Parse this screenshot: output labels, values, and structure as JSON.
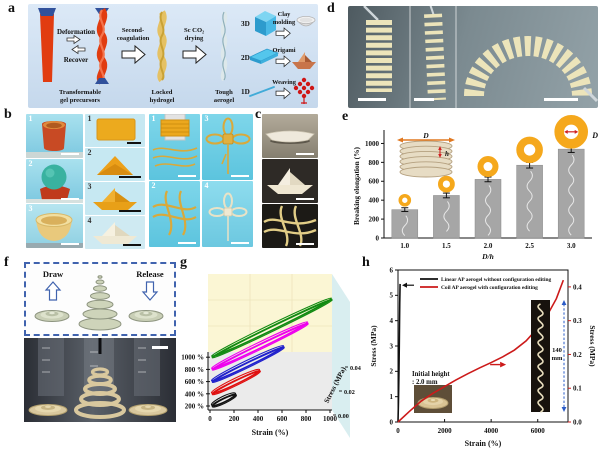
{
  "panels": {
    "a": {
      "label": "a",
      "deformation": "Deformation",
      "recover": "Recover",
      "precursors": [
        "Transformable",
        "gel precursors"
      ],
      "second_coagulation": [
        "Second-",
        "coagulation"
      ],
      "locked_hydrogel": [
        "Locked",
        "hydrogel"
      ],
      "sc_co2_drying": [
        "Sc CO₂",
        "drying"
      ],
      "tough_aerogel": [
        "Tough",
        "aerogel"
      ],
      "dims": {
        "d3": "3D",
        "d2": "2D",
        "d1": "1D"
      },
      "clay_molding": [
        "Clay",
        "molding"
      ],
      "origami": "Origami",
      "weaving": "Weaving"
    },
    "b": {
      "label": "b",
      "left_numbers": [
        "1",
        "2",
        "3"
      ],
      "middle_numbers": [
        "1",
        "2",
        "3",
        "4"
      ],
      "right_numbers": [
        "1",
        "3",
        "2",
        "4"
      ]
    },
    "c": {
      "label": "c"
    },
    "d": {
      "label": "d"
    },
    "e": {
      "label": "e"
    },
    "f": {
      "label": "f",
      "draw": "Draw",
      "release": "Release"
    },
    "g": {
      "label": "g"
    },
    "h": {
      "label": "h"
    }
  },
  "chart_data": [
    {
      "panel": "e",
      "type": "bar",
      "categories": [
        "1.0",
        "1.5",
        "2.0",
        "2.5",
        "3.0"
      ],
      "values": [
        300,
        450,
        620,
        770,
        940
      ],
      "errors": [
        20,
        25,
        25,
        30,
        35
      ],
      "xlabel": "D/h",
      "ylabel": "Breaking elongation (%)",
      "ylim": [
        0,
        1100
      ],
      "yticks": [
        0,
        200,
        400,
        600,
        800,
        1000
      ],
      "bar_color": "#a6a6a6",
      "ring_color": "#f5a81c",
      "ring_radii": [
        4.5,
        6,
        7.5,
        9.5,
        12
      ],
      "inset": {
        "diameter_label": "D",
        "pitch_label": "h",
        "ring_label": "D"
      }
    },
    {
      "panel": "g",
      "type": "3d-cyclic-stress-strain",
      "series": [
        {
          "name": "200 %",
          "color": "#111111",
          "max_strain": 200
        },
        {
          "name": "400 %",
          "color": "#e01010",
          "max_strain": 400
        },
        {
          "name": "600 %",
          "color": "#2020cc",
          "max_strain": 600
        },
        {
          "name": "800 %",
          "color": "#ee00ee",
          "max_strain": 800
        },
        {
          "name": "1000 %",
          "color": "#118a11",
          "max_strain": 1000
        }
      ],
      "xlabel": "Strain (%)",
      "zlabel": "Stress (MPa)",
      "xticks": [
        0,
        200,
        400,
        600,
        800,
        1000
      ],
      "zticks": [
        "0.00",
        "0.02",
        "0.04"
      ],
      "back_wall_color": "#fbf6d4",
      "side_wall_color": "#d9eef0",
      "floor_color": "#ebebeb"
    },
    {
      "panel": "h",
      "type": "line",
      "xlabel": "Strain (%)",
      "xticks": [
        0,
        2000,
        4000,
        6000
      ],
      "xlim": [
        0,
        7300
      ],
      "left_axis": {
        "label": "Stress (MPa)",
        "ticks": [
          0,
          1,
          2,
          3,
          4,
          5,
          6
        ],
        "lim": [
          0,
          6
        ],
        "color": "#111111"
      },
      "right_axis": {
        "label": "Stress (MPa)",
        "ticks": [
          "0.0",
          "0.1",
          "0.2",
          "0.3",
          "0.4"
        ],
        "lim": [
          0,
          0.45
        ],
        "color": "#cc1a1a"
      },
      "series": [
        {
          "name": "Linear AP aerogel without configuration editing",
          "color": "#111111",
          "axis": "left",
          "x": [
            0,
            20,
            40,
            55,
            65,
            75,
            85,
            90
          ],
          "y": [
            0,
            0.8,
            1.9,
            3.0,
            3.9,
            4.7,
            5.2,
            5.45
          ]
        },
        {
          "name": "Coil AP aerogel with configuration editing",
          "color": "#cc1a1a",
          "axis": "right",
          "x": [
            0,
            500,
            1000,
            1500,
            2000,
            2500,
            3000,
            3500,
            4000,
            4500,
            5000,
            5500,
            6000,
            6400,
            6800,
            7100
          ],
          "y": [
            0,
            0.032,
            0.062,
            0.085,
            0.105,
            0.125,
            0.143,
            0.16,
            0.176,
            0.193,
            0.213,
            0.24,
            0.278,
            0.315,
            0.365,
            0.42
          ]
        }
      ],
      "annotations": {
        "initial_height": [
          "Initial height",
          ": 2.0 mm"
        ],
        "coil_height": [
          "140",
          "mm"
        ]
      }
    }
  ]
}
